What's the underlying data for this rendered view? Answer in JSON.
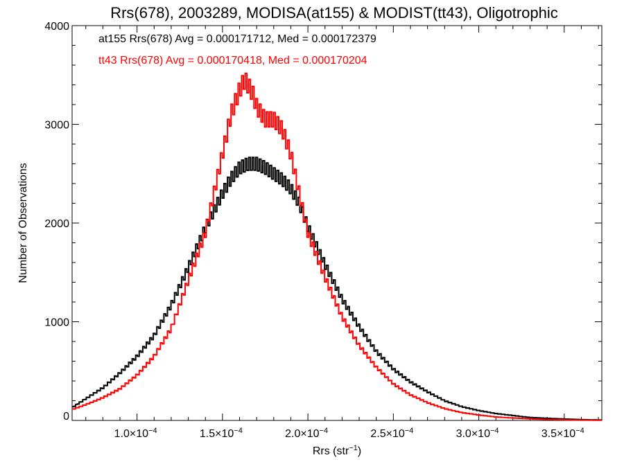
{
  "chart_data": {
    "type": "line",
    "step": true,
    "title": "Rrs(678), 2003289, MODISA(at155) & MODIST(tt43), Oligotrophic",
    "xlabel_text": "Rrs (str",
    "xlabel_sup": "−1",
    "xlabel_close": ")",
    "ylabel": "Number of Observations",
    "xlim": [
      6.2e-05,
      0.000372
    ],
    "ylim": [
      0,
      4000
    ],
    "x_ticks": [
      {
        "value": 0.0001,
        "mantissa": "1.0",
        "exp": "−4"
      },
      {
        "value": 0.00015,
        "mantissa": "1.5",
        "exp": "−4"
      },
      {
        "value": 0.0002,
        "mantissa": "2.0",
        "exp": "−4"
      },
      {
        "value": 0.00025,
        "mantissa": "2.5",
        "exp": "−4"
      },
      {
        "value": 0.0003,
        "mantissa": "3.0",
        "exp": "−4"
      },
      {
        "value": 0.00035,
        "mantissa": "3.5",
        "exp": "−4"
      }
    ],
    "y_ticks": [
      {
        "value": 0,
        "label": "0"
      },
      {
        "value": 1000,
        "label": "1000"
      },
      {
        "value": 2000,
        "label": "2000"
      },
      {
        "value": 3000,
        "label": "3000"
      },
      {
        "value": 4000,
        "label": "4000"
      }
    ],
    "annotations": [
      {
        "text": "at155 Rrs(678) Avg = 0.000171712, Med = 0.000172379",
        "color": "#000000"
      },
      {
        "text": "tt43 Rrs(678) Avg = 0.000170418, Med = 0.000170204",
        "color": "#ff0000"
      }
    ],
    "series": [
      {
        "name": "at155",
        "color": "#000000",
        "x": [
          6.2e-05,
          7e-05,
          8e-05,
          9e-05,
          0.0001,
          0.00011,
          0.00012,
          0.00013,
          0.00014,
          0.00015,
          0.000155,
          0.00016,
          0.000165,
          0.00017,
          0.000175,
          0.00018,
          0.000185,
          0.00019,
          0.000195,
          0.0002,
          0.00021,
          0.00022,
          0.00023,
          0.00024,
          0.00025,
          0.00026,
          0.00027,
          0.00028,
          0.00029,
          0.0003,
          0.00031,
          0.00032,
          0.00033,
          0.00034,
          0.00035,
          0.00036,
          0.000372
        ],
        "y": [
          130,
          220,
          330,
          480,
          650,
          860,
          1170,
          1550,
          1950,
          2300,
          2450,
          2560,
          2600,
          2600,
          2560,
          2500,
          2440,
          2350,
          2200,
          1960,
          1580,
          1230,
          950,
          700,
          520,
          390,
          290,
          200,
          140,
          100,
          70,
          50,
          30,
          22,
          15,
          8,
          5
        ]
      },
      {
        "name": "tt43",
        "color": "#ff0000",
        "x": [
          6.2e-05,
          7e-05,
          8e-05,
          9e-05,
          0.0001,
          0.00011,
          0.00012,
          0.00013,
          0.00014,
          0.00015,
          0.000155,
          0.00016,
          0.000163,
          0.000165,
          0.000168,
          0.00017,
          0.000175,
          0.00018,
          0.000185,
          0.00019,
          0.000195,
          0.0002,
          0.00021,
          0.00022,
          0.00023,
          0.00024,
          0.00025,
          0.00026,
          0.00027,
          0.00028,
          0.00029,
          0.0003,
          0.00031,
          0.00032,
          0.00033,
          0.00034,
          0.00035,
          0.00036,
          0.000372
        ],
        "y": [
          110,
          160,
          230,
          320,
          460,
          650,
          930,
          1420,
          1900,
          2700,
          3100,
          3350,
          3450,
          3400,
          3300,
          3180,
          3050,
          3050,
          2950,
          2700,
          2300,
          1900,
          1450,
          1050,
          760,
          540,
          370,
          260,
          180,
          120,
          80,
          55,
          35,
          25,
          16,
          10,
          6,
          3,
          2
        ]
      }
    ]
  }
}
